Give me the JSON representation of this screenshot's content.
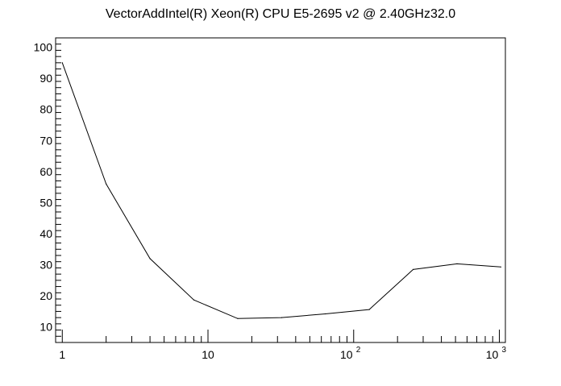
{
  "chart_data": {
    "type": "line",
    "title": "VectorAddIntel(R) Xeon(R) CPU E5-2695 v2 @ 2.40GHz32.0",
    "xlabel": "",
    "ylabel": "",
    "x_scale": "log",
    "xlim": [
      0.9,
      1100
    ],
    "ylim": [
      5,
      103
    ],
    "grid": false,
    "legend": "none",
    "x_ticks": [
      {
        "value": 1,
        "label": "1"
      },
      {
        "value": 10,
        "label": "10"
      },
      {
        "value": 100,
        "base": "10",
        "exp": "2"
      },
      {
        "value": 1000,
        "base": "10",
        "exp": "3"
      }
    ],
    "y_ticks": [
      10,
      20,
      30,
      40,
      50,
      60,
      70,
      80,
      90,
      100
    ],
    "series": [
      {
        "color": "#000000",
        "x": [
          1,
          2,
          4,
          8,
          16,
          32,
          64,
          128,
          256,
          512,
          1024
        ],
        "y": [
          95,
          56,
          32,
          18.7,
          12.7,
          13,
          14.2,
          15.6,
          28.5,
          30.3,
          29.3
        ]
      }
    ]
  }
}
